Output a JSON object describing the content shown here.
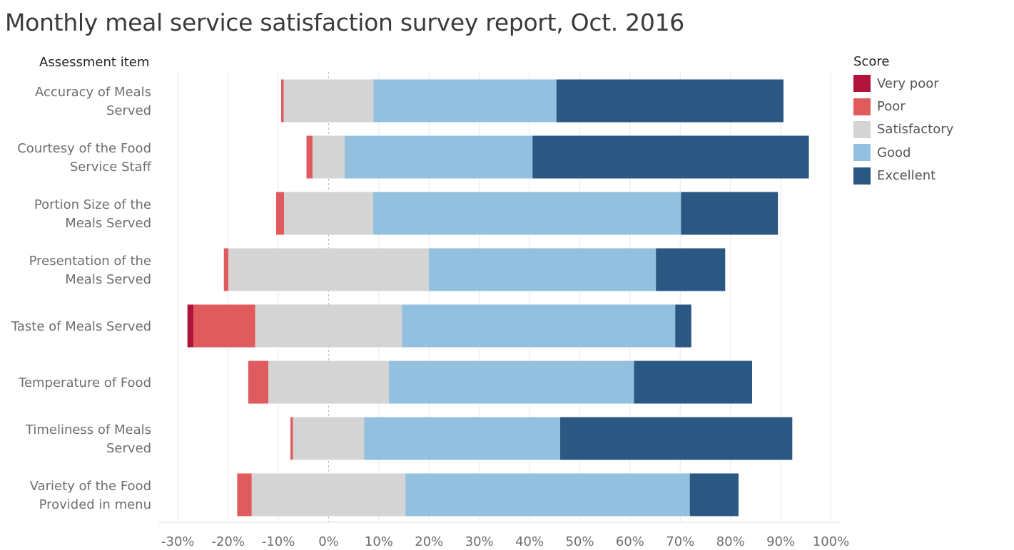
{
  "chart_data": {
    "type": "bar",
    "orientation": "horizontal",
    "stacking": "diverging",
    "title": "Monthly meal service satisfaction survey report, Oct. 2016",
    "ylabel": "Assessment item",
    "legend_title": "Score",
    "legend_position": "right",
    "grid": true,
    "xlim": [
      -0.3,
      1.0
    ],
    "xticks": [
      -0.3,
      -0.2,
      -0.1,
      0,
      0.1,
      0.2,
      0.3,
      0.4,
      0.5,
      0.6,
      0.7,
      0.8,
      0.9,
      1.0
    ],
    "xtick_labels": [
      "-30%",
      "-20%",
      "-10%",
      "0%",
      "10%",
      "20%",
      "30%",
      "40%",
      "50%",
      "60%",
      "70%",
      "80%",
      "90%",
      "100%"
    ],
    "categories": [
      [
        "Accuracy of Meals",
        "Served"
      ],
      [
        "Courtesy of the Food",
        "Service Staff"
      ],
      [
        "Portion Size of the",
        "Meals Served"
      ],
      [
        "Presentation of the",
        "Meals Served"
      ],
      [
        "Taste of Meals Served"
      ],
      [
        "Temperature of Food"
      ],
      [
        "Timeliness of Meals",
        "Served"
      ],
      [
        "Variety of the Food",
        "Provided in menu"
      ]
    ],
    "series": [
      {
        "name": "Very poor",
        "color": "#b0143a",
        "values": [
          0.0,
          0.0,
          0.0,
          0.0,
          0.012,
          0.0,
          0.0,
          0.0
        ]
      },
      {
        "name": "Poor",
        "color": "#e05b5d",
        "values": [
          0.005,
          0.012,
          0.016,
          0.009,
          0.123,
          0.04,
          0.005,
          0.029
        ]
      },
      {
        "name": "Satisfactory",
        "color": "#d4d4d4",
        "values": [
          0.179,
          0.064,
          0.177,
          0.399,
          0.292,
          0.24,
          0.142,
          0.306
        ]
      },
      {
        "name": "Good",
        "color": "#93c0df",
        "values": [
          0.364,
          0.374,
          0.613,
          0.452,
          0.544,
          0.488,
          0.39,
          0.566
        ]
      },
      {
        "name": "Excellent",
        "color": "#2b5783",
        "values": [
          0.452,
          0.55,
          0.193,
          0.138,
          0.032,
          0.235,
          0.462,
          0.097
        ]
      }
    ],
    "neutral_series": "Satisfactory"
  }
}
